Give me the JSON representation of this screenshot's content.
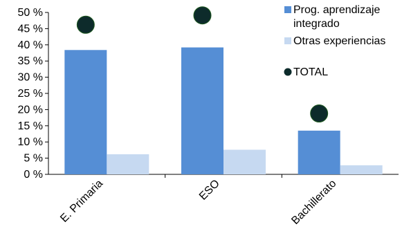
{
  "chart_data": {
    "type": "bar",
    "categories": [
      "E. Primaria",
      "ESO",
      "Bachillerato"
    ],
    "series": [
      {
        "name": "Prog. aprendizaje integrado",
        "kind": "bar",
        "color": "#558ED5",
        "values": [
          38.4,
          39.2,
          13.5
        ]
      },
      {
        "name": "Otras experiencias",
        "kind": "bar",
        "color": "#C6D9F1",
        "values": [
          6.2,
          7.6,
          2.8
        ]
      },
      {
        "name": "TOTAL",
        "kind": "marker",
        "color": "#0D2B2B",
        "values": [
          46.2,
          49.1,
          18.8
        ]
      }
    ],
    "legend_lines": [
      {
        "series": 0,
        "lines": [
          "Prog. aprendizaje",
          "integrado"
        ]
      },
      {
        "series": 1,
        "lines": [
          "Otras experiencias"
        ]
      },
      {
        "series": 2,
        "lines": [
          "TOTAL"
        ]
      }
    ],
    "ylim": [
      0,
      50
    ],
    "yticks": [
      0,
      5,
      10,
      15,
      20,
      25,
      30,
      35,
      40,
      45,
      50
    ],
    "ytick_labels": [
      "0 %",
      "5 %",
      "10 %",
      "15 %",
      "20 %",
      "25 %",
      "30 %",
      "35 %",
      "40 %",
      "45 %",
      "50 %"
    ],
    "grid": false,
    "legend_position": "right"
  }
}
